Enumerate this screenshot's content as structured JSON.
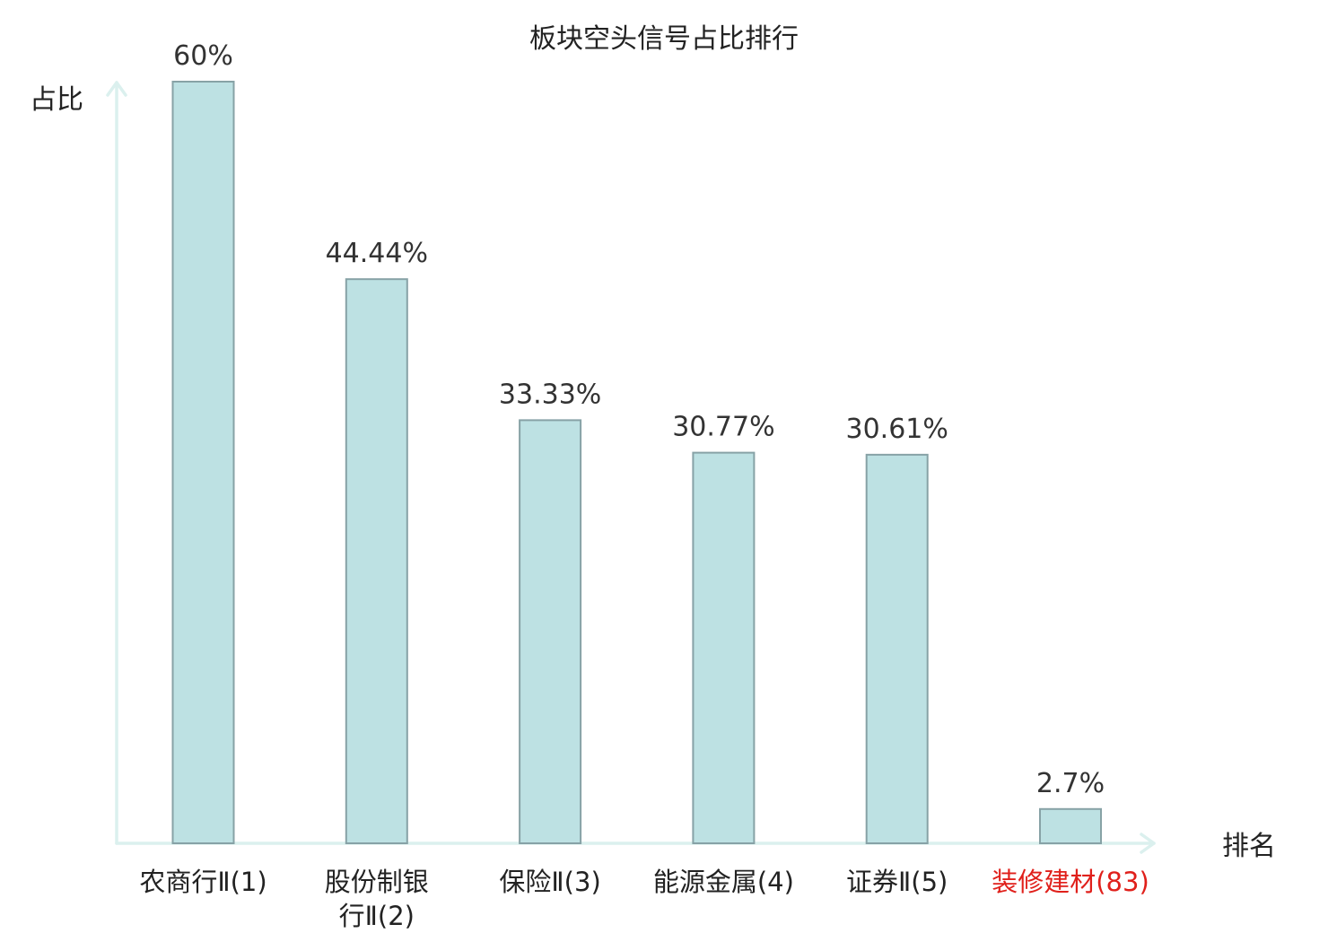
{
  "chart_data": {
    "type": "bar",
    "title": "板块空头信号占比排行",
    "xlabel": "排名",
    "ylabel": "占比",
    "categories": [
      [
        "农商行Ⅱ(1)"
      ],
      [
        "股份制银",
        "行Ⅱ(2)"
      ],
      [
        "保险Ⅱ(3)"
      ],
      [
        "能源金属(4)"
      ],
      [
        "证券Ⅱ(5)"
      ],
      [
        "装修建材(83)"
      ]
    ],
    "values": [
      60,
      44.44,
      33.33,
      30.77,
      30.61,
      2.7
    ],
    "value_labels": [
      "60%",
      "44.44%",
      "33.33%",
      "30.77%",
      "30.61%",
      "2.7%"
    ],
    "ylim": [
      0,
      60
    ],
    "grid": false,
    "legend": "none",
    "colors": {
      "bar_fill": "#bde1e3",
      "bar_stroke": "#87a2a6",
      "axis": "#dbf0ee",
      "label_default": "#222222",
      "label_highlight": "#e0201b"
    },
    "highlight_index": 5
  }
}
